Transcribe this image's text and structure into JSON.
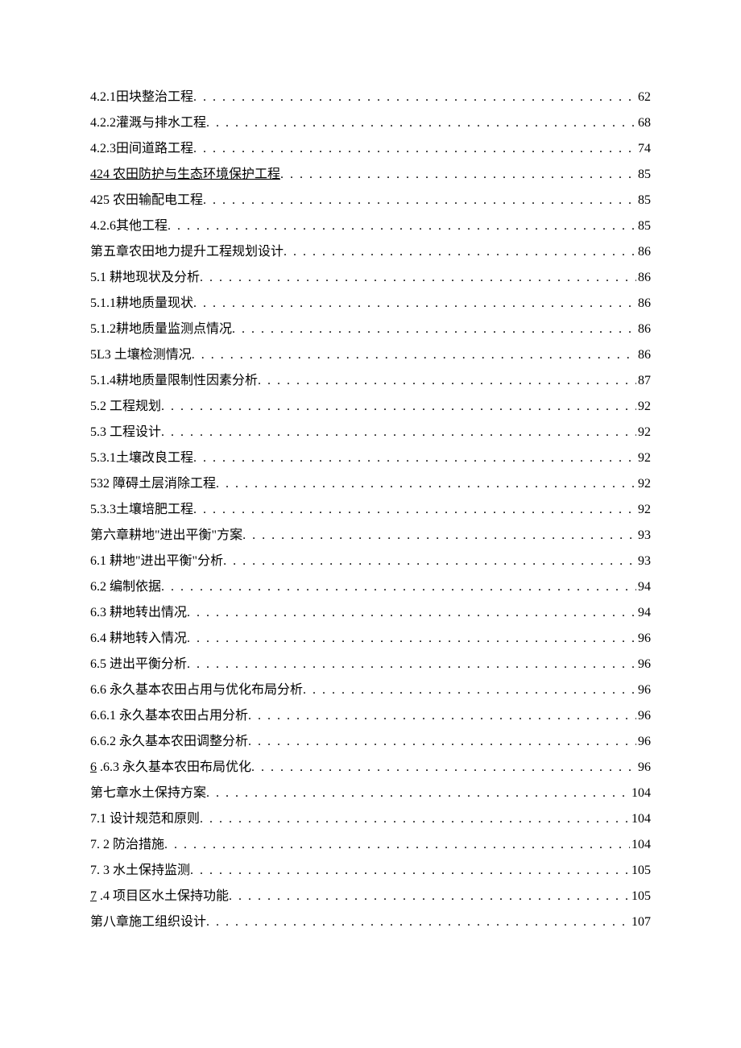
{
  "colors": {
    "background": "#ffffff",
    "text": "#000000"
  },
  "typography": {
    "font_family": "SimSun",
    "font_size_pt": 12,
    "line_height": 2.0
  },
  "toc": {
    "entries": [
      {
        "label": "4.2.1田块整治工程",
        "page": "62",
        "underlined": false
      },
      {
        "label": "4.2.2灌溉与排水工程",
        "page": "68",
        "underlined": false
      },
      {
        "label": "4.2.3田间道路工程",
        "page": "74",
        "underlined": false
      },
      {
        "label": "424 农田防护与生态环境保护工程",
        "page": "85",
        "underlined": true
      },
      {
        "label": "425 农田输配电工程",
        "page": "85",
        "underlined": false
      },
      {
        "label": "4.2.6其他工程",
        "page": "85",
        "underlined": false
      },
      {
        "label": "第五章农田地力提升工程规划设计",
        "page": "86",
        "underlined": false
      },
      {
        "label": "5.1 耕地现状及分析",
        "page": "86",
        "underlined": false
      },
      {
        "label": "5.1.1耕地质量现状",
        "page": "86",
        "underlined": false
      },
      {
        "label": "5.1.2耕地质量监测点情况",
        "page": "86",
        "underlined": false
      },
      {
        "label": "5L3 土壤检测情况",
        "page": "86",
        "underlined": false
      },
      {
        "label": "5.1.4耕地质量限制性因素分析",
        "page": "87",
        "underlined": false
      },
      {
        "label": "5.2 工程规划",
        "page": "92",
        "underlined": false
      },
      {
        "label": "5.3 工程设计",
        "page": "92",
        "underlined": false
      },
      {
        "label": "5.3.1土壤改良工程",
        "page": "92",
        "underlined": false
      },
      {
        "label": "532 障碍土层消除工程",
        "page": "92",
        "underlined": false
      },
      {
        "label": "5.3.3土壤培肥工程",
        "page": "92",
        "underlined": false
      },
      {
        "label": "第六章耕地\"进出平衡\"方案",
        "page": "93",
        "underlined": false
      },
      {
        "label": "6.1 耕地\"进出平衡\"分析",
        "page": "93",
        "underlined": false
      },
      {
        "label": "6.2 编制依据",
        "page": "94",
        "underlined": false
      },
      {
        "label": "6.3 耕地转出情况",
        "page": "94",
        "underlined": false
      },
      {
        "label": "6.4 耕地转入情况",
        "page": "96",
        "underlined": false
      },
      {
        "label": "6.5 进出平衡分析",
        "page": "96",
        "underlined": false
      },
      {
        "label": "6.6 永久基本农田占用与优化布局分析",
        "page": "96",
        "underlined": false
      },
      {
        "label": "6.6.1 永久基本农田占用分析",
        "page": "96",
        "underlined": false
      },
      {
        "label": "6.6.2 永久基本农田调整分析",
        "page": "96",
        "underlined": false
      },
      {
        "label": "6 .6.3 永久基本农田布局优化",
        "page": "96",
        "underlined": "first-char"
      },
      {
        "label": "第七章水土保持方案",
        "page": "104",
        "underlined": false
      },
      {
        "label": "7.1 设计规范和原则",
        "page": "104",
        "underlined": false
      },
      {
        "label": "7. 2 防治措施",
        "page": "104",
        "underlined": false
      },
      {
        "label": "7. 3 水土保持监测",
        "page": "105",
        "underlined": false
      },
      {
        "label": "7 .4 项目区水土保持功能",
        "page": "105",
        "underlined": "first-char"
      },
      {
        "label": "第八章施工组织设计",
        "page": "107",
        "underlined": false
      }
    ]
  }
}
